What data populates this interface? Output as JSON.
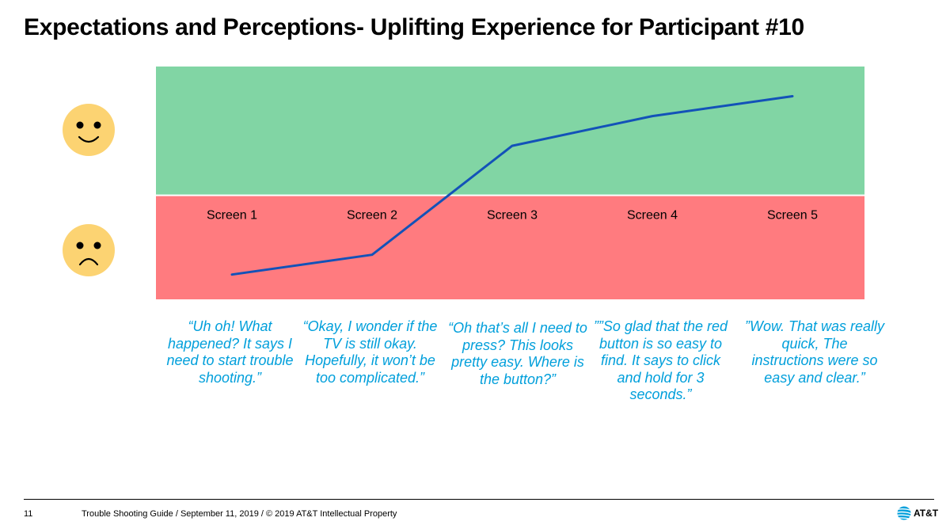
{
  "slide": {
    "title": "Expectations and Perceptions- Uplifting Experience for Participant #10"
  },
  "chart_data": {
    "type": "line",
    "categories": [
      "Screen 1",
      "Screen 2",
      "Screen 3",
      "Screen 4",
      "Screen 5"
    ],
    "series": [
      {
        "values": [
          -0.8,
          -0.6,
          0.5,
          0.8,
          1.0
        ]
      }
    ],
    "ylim": [
      -1.05,
      1.3
    ],
    "zones": [
      {
        "name": "positive",
        "color": "#81d5a4",
        "from": 0,
        "to": 1.3
      },
      {
        "name": "negative",
        "color": "#ff7b7f",
        "from": -1.05,
        "to": 0
      }
    ],
    "line_color": "#1352b8",
    "legend_icons": [
      "happy-face-icon",
      "sad-face-icon"
    ],
    "icon_color": "#fcd372",
    "grid": false
  },
  "quotes": [
    "“Uh oh! What happened? It says I need to start trouble shooting.”",
    "“Okay, I wonder if the TV is still okay. Hopefully, it won’t be too complicated.”",
    "“Oh that’s all I need to press? This looks pretty easy. Where is the button?”",
    "””So glad that the red button is so easy to find. It says to click and hold for 3 seconds.”",
    "”Wow. That was really quick, The instructions were so easy and clear.”"
  ],
  "footer": {
    "page_number": "11",
    "text": "Trouble Shooting Guide / September 11, 2019 / © 2019 AT&T Intellectual Property",
    "logo_text": "AT&T"
  },
  "colors": {
    "quote": "#009fdb",
    "att_blue": "#009fdb"
  }
}
